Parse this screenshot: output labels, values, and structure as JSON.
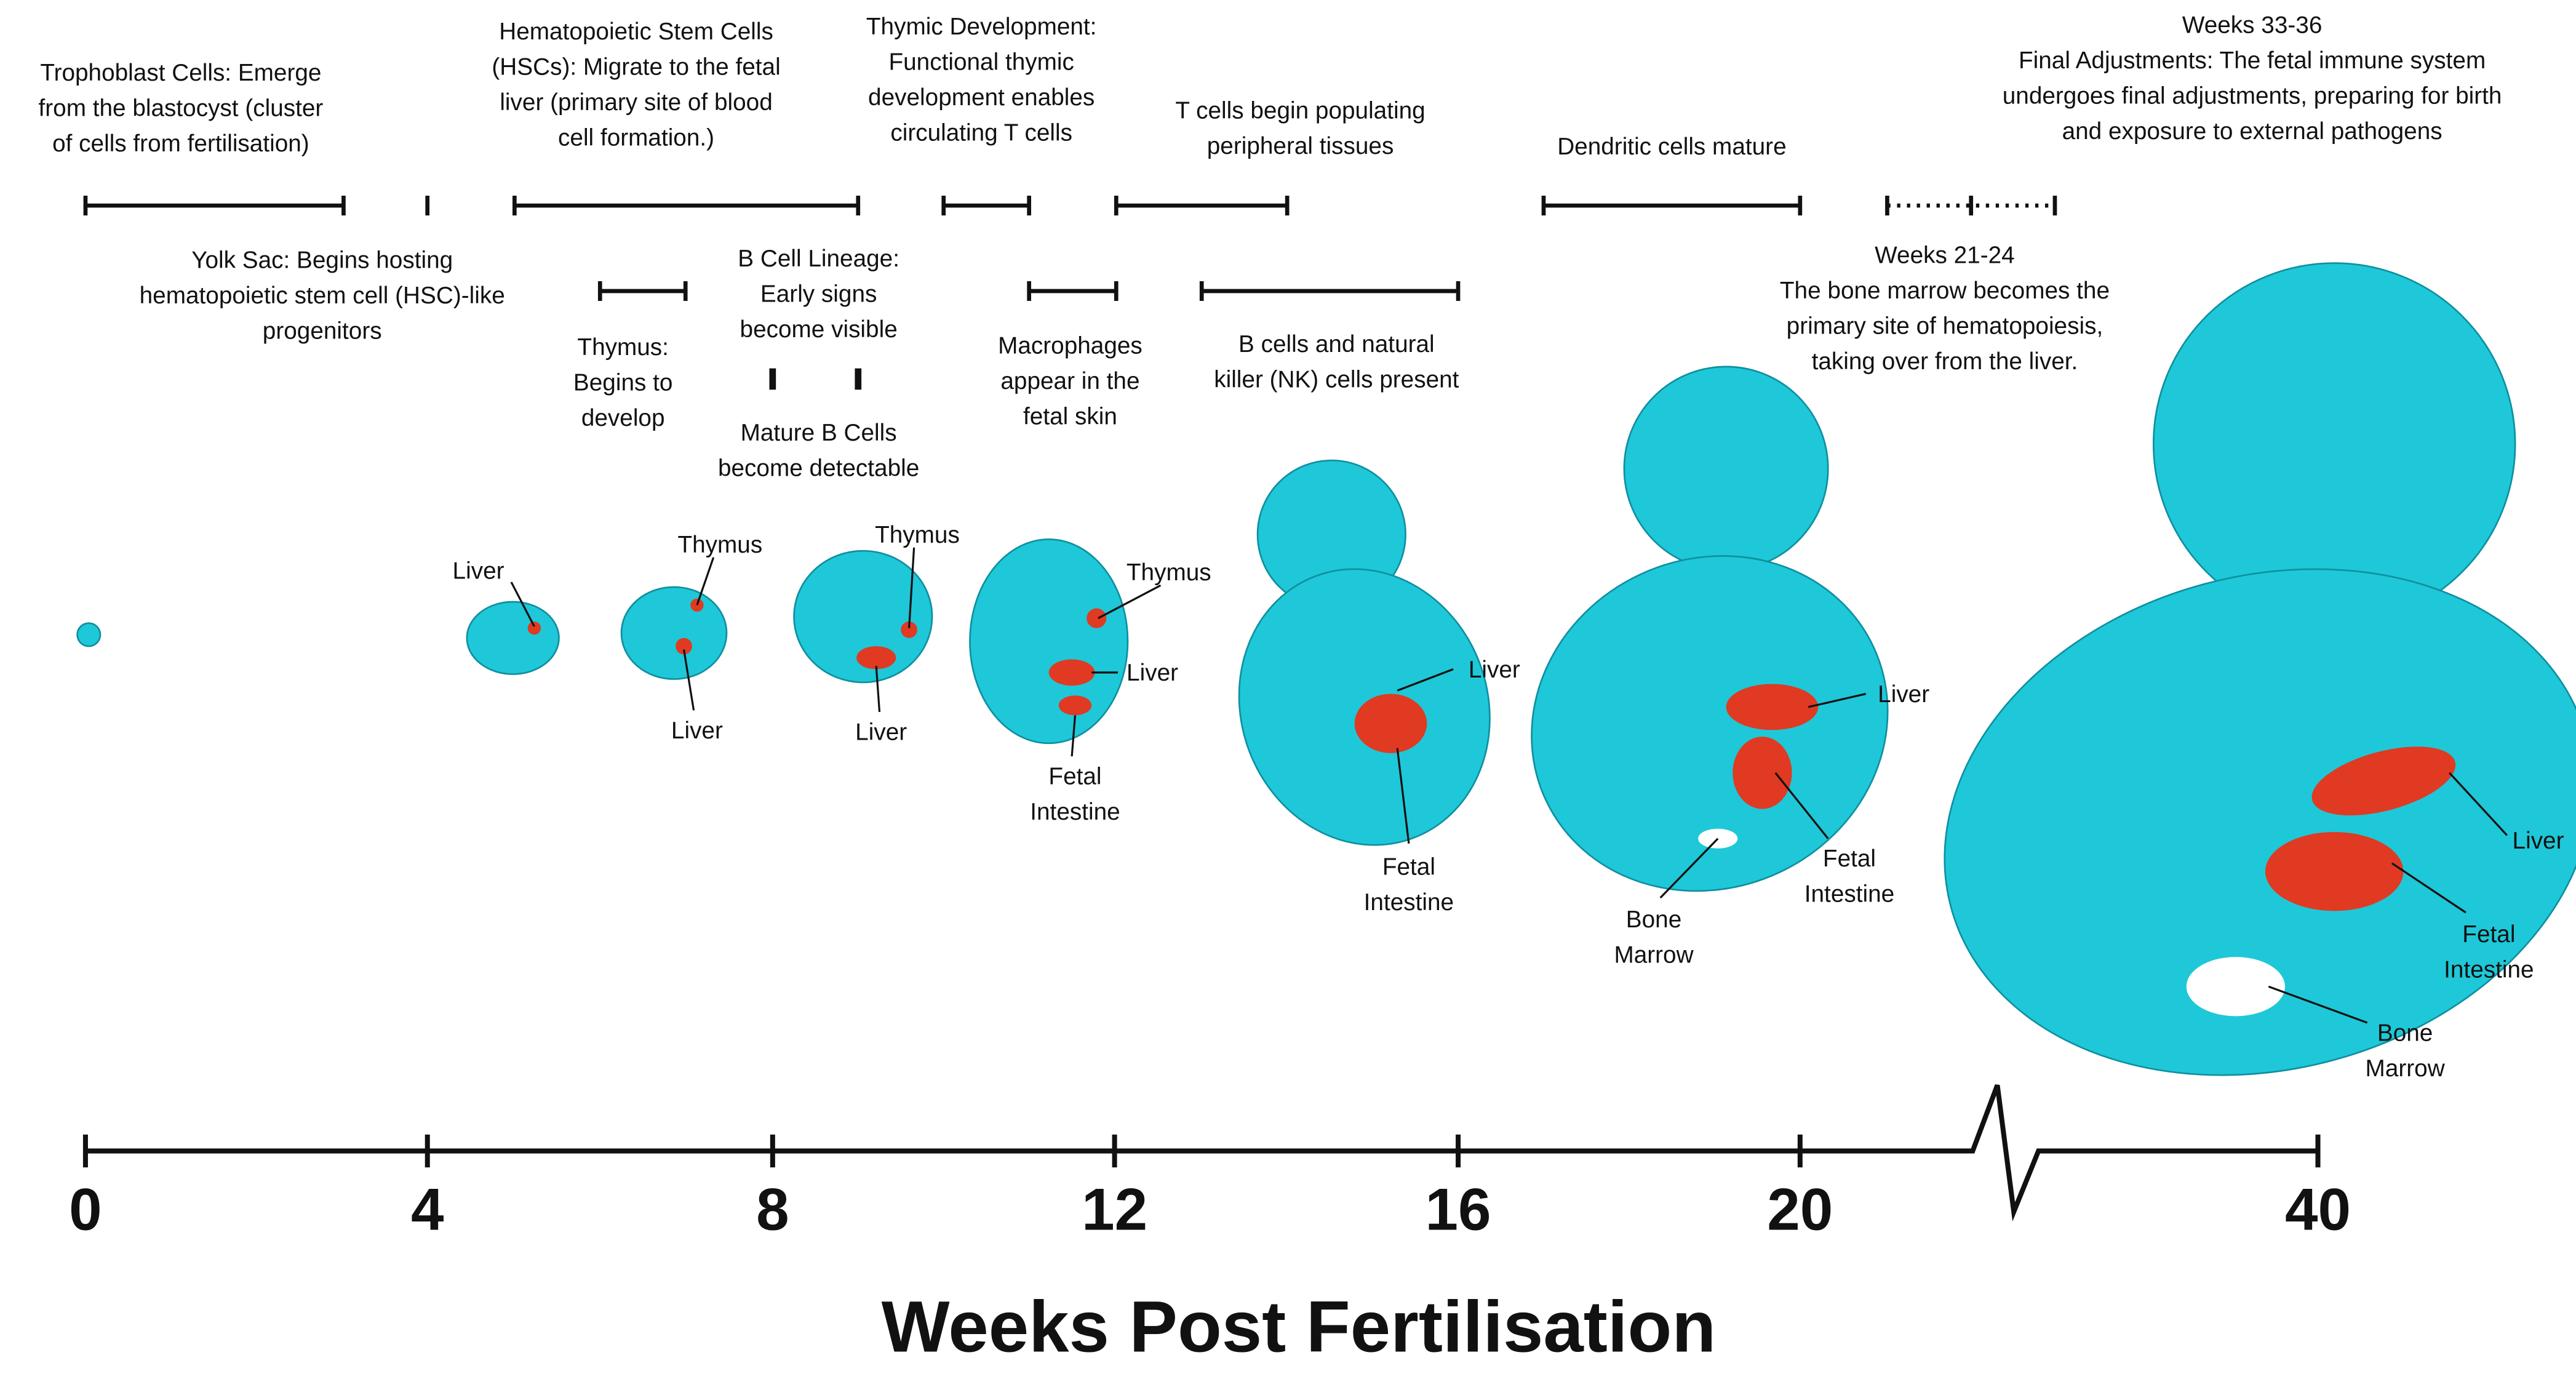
{
  "events": [
    {
      "lines": [
        "Trophoblast Cells: Emerge",
        "from the blastocyst (cluster",
        "of cells from fertilisation)"
      ]
    },
    {
      "lines": [
        "Yolk Sac: Begins hosting",
        "hematopoietic stem cell (HSC)-like",
        "progenitors"
      ]
    },
    {
      "lines": [
        "Hematopoietic Stem Cells",
        "(HSCs): Migrate to the fetal",
        "liver (primary site of blood",
        "cell formation.)"
      ]
    },
    {
      "lines": [
        "Thymus:",
        "Begins to",
        "develop"
      ]
    },
    {
      "lines": [
        "B Cell Lineage:",
        "Early signs",
        "become visible"
      ]
    },
    {
      "lines": [
        "Mature B Cells",
        "become detectable"
      ]
    },
    {
      "lines": [
        "Thymic Development:",
        "Functional thymic",
        "development enables",
        "circulating T cells"
      ]
    },
    {
      "lines": [
        "Macrophages",
        "appear in the",
        "fetal skin"
      ]
    },
    {
      "lines": [
        "T cells begin populating",
        "peripheral tissues"
      ]
    },
    {
      "lines": [
        "B cells and natural",
        "killer (NK) cells present"
      ]
    },
    {
      "lines": [
        "Dendritic cells mature"
      ]
    },
    {
      "lines": [
        "Weeks 21-24",
        "The bone marrow becomes the",
        "primary site of hematopoiesis,",
        "taking over from the liver."
      ]
    },
    {
      "lines": [
        "Weeks 33-36",
        "Final Adjustments: The fetal immune system",
        "undergoes final adjustments, preparing for birth",
        "and exposure to external pathogens"
      ]
    }
  ],
  "annotations": [
    {
      "lines": [
        "Liver"
      ]
    },
    {
      "lines": [
        "Thymus"
      ]
    },
    {
      "lines": [
        "Liver"
      ]
    },
    {
      "lines": [
        "Thymus"
      ]
    },
    {
      "lines": [
        "Liver"
      ]
    },
    {
      "lines": [
        "Thymus"
      ]
    },
    {
      "lines": [
        "Liver"
      ]
    },
    {
      "lines": [
        "Fetal",
        "Intestine"
      ]
    },
    {
      "lines": [
        "Liver"
      ]
    },
    {
      "lines": [
        "Fetal",
        "Intestine"
      ]
    },
    {
      "lines": [
        "Liver"
      ]
    },
    {
      "lines": [
        "Fetal",
        "Intestine"
      ]
    },
    {
      "lines": [
        "Bone",
        "Marrow"
      ]
    },
    {
      "lines": [
        "Liver"
      ]
    },
    {
      "lines": [
        "Fetal",
        "Intestine"
      ]
    },
    {
      "lines": [
        "Bone",
        "Marrow"
      ]
    }
  ],
  "axis": {
    "ticks": [
      0,
      4,
      8,
      12,
      16,
      20,
      40
    ],
    "title": "Weeks Post Fertilisation"
  }
}
